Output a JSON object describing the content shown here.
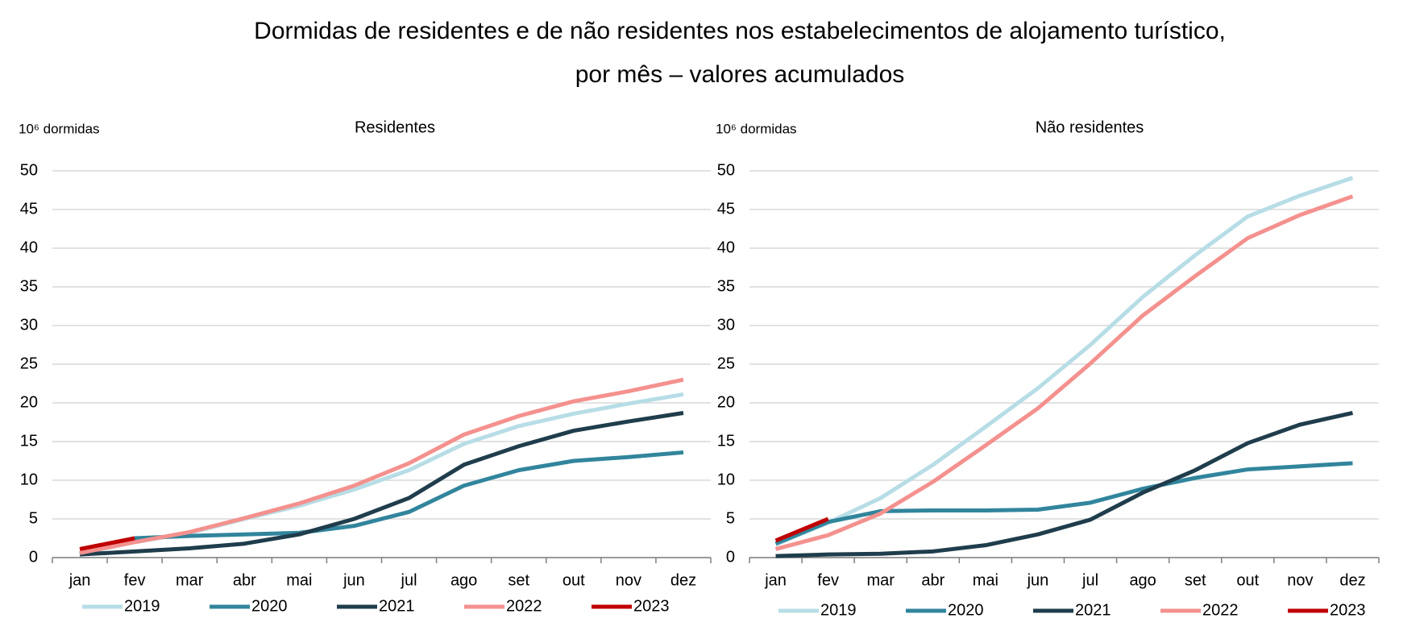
{
  "title": [
    "Dormidas de residentes e de não residentes nos estabelecimentos de alojamento turístico,",
    "por mês – valores acumulados"
  ],
  "chart_data": [
    {
      "type": "line",
      "title": "Residentes",
      "y_label": "10⁶ dormidas",
      "categories": [
        "jan",
        "fev",
        "mar",
        "abr",
        "mai",
        "jun",
        "jul",
        "ago",
        "set",
        "out",
        "nov",
        "dez"
      ],
      "ylim": [
        0,
        50
      ],
      "yticks": [
        0,
        5,
        10,
        15,
        20,
        25,
        30,
        35,
        40,
        45,
        50
      ],
      "grid": true,
      "series": [
        {
          "name": "2019",
          "color": "#b7dde6",
          "values": [
            0.5,
            2.0,
            3.2,
            5.0,
            6.7,
            8.8,
            11.3,
            14.7,
            17.0,
            18.6,
            19.9,
            21.1
          ]
        },
        {
          "name": "2020",
          "color": "#31859c",
          "values": [
            0.5,
            2.5,
            2.8,
            3.0,
            3.2,
            4.1,
            5.9,
            9.3,
            11.3,
            12.5,
            13.0,
            13.6
          ]
        },
        {
          "name": "2021",
          "color": "#1f3d4c",
          "values": [
            0.4,
            0.8,
            1.2,
            1.8,
            3.0,
            5.0,
            7.7,
            12.0,
            14.4,
            16.4,
            17.6,
            18.7
          ]
        },
        {
          "name": "2022",
          "color": "#f4918e",
          "values": [
            0.6,
            2.0,
            3.3,
            5.1,
            7.0,
            9.3,
            12.2,
            15.9,
            18.3,
            20.2,
            21.5,
            23.0
          ]
        },
        {
          "name": "2023",
          "color": "#c00000",
          "values": [
            1.1,
            2.5,
            null,
            null,
            null,
            null,
            null,
            null,
            null,
            null,
            null,
            null
          ]
        }
      ]
    },
    {
      "type": "line",
      "title": "Não residentes",
      "y_label": "10⁶ dormidas",
      "categories": [
        "jan",
        "fev",
        "mar",
        "abr",
        "mai",
        "jun",
        "jul",
        "ago",
        "set",
        "out",
        "nov",
        "dez"
      ],
      "ylim": [
        0,
        50
      ],
      "yticks": [
        0,
        5,
        10,
        15,
        20,
        25,
        30,
        35,
        40,
        45,
        50
      ],
      "grid": true,
      "series": [
        {
          "name": "2019",
          "color": "#b7dde6",
          "values": [
            1.7,
            4.5,
            7.7,
            12.0,
            16.9,
            21.9,
            27.5,
            33.7,
            39.1,
            44.1,
            46.8,
            49.1
          ]
        },
        {
          "name": "2020",
          "color": "#31859c",
          "values": [
            1.8,
            4.6,
            6.0,
            6.1,
            6.1,
            6.2,
            7.1,
            8.9,
            10.3,
            11.4,
            11.8,
            12.2
          ]
        },
        {
          "name": "2021",
          "color": "#1f3d4c",
          "values": [
            0.2,
            0.4,
            0.5,
            0.8,
            1.6,
            3.0,
            4.9,
            8.4,
            11.3,
            14.8,
            17.2,
            18.7
          ]
        },
        {
          "name": "2022",
          "color": "#f4918e",
          "values": [
            1.1,
            2.9,
            5.7,
            9.8,
            14.5,
            19.3,
            25.1,
            31.3,
            36.4,
            41.3,
            44.3,
            46.7
          ]
        },
        {
          "name": "2023",
          "color": "#c00000",
          "values": [
            2.2,
            5.0,
            null,
            null,
            null,
            null,
            null,
            null,
            null,
            null,
            null,
            null
          ]
        }
      ]
    }
  ]
}
